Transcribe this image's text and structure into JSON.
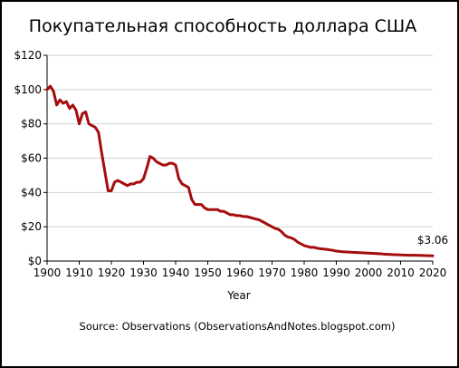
{
  "chart_data": {
    "type": "line",
    "title": "Покупательная способность доллара США",
    "xlabel": "Year",
    "ylabel": "",
    "source": "Source: Observations (ObservationsAndNotes.blogspot.com)",
    "annotation": "$3.06",
    "xlim": [
      1900,
      2020
    ],
    "ylim": [
      0,
      120
    ],
    "x_ticks": [
      1900,
      1910,
      1920,
      1930,
      1940,
      1950,
      1960,
      1970,
      1980,
      1990,
      2000,
      2010,
      2020
    ],
    "x_tick_labels": [
      "1900",
      "1910",
      "1920",
      "1930",
      "1940",
      "1950",
      "1960",
      "1970",
      "1980",
      "1990",
      "2000",
      "2010",
      "2020"
    ],
    "y_ticks": [
      0,
      20,
      40,
      60,
      80,
      100,
      120
    ],
    "y_tick_labels": [
      "$0",
      "$20",
      "$40",
      "$60",
      "$80",
      "$100",
      "$120"
    ],
    "grid": "horizontal",
    "line_color": "#a50d0d",
    "series": [
      {
        "x": [
          1900,
          1901,
          1902,
          1903,
          1904,
          1905,
          1906,
          1907,
          1908,
          1909,
          1910,
          1911,
          1912,
          1913,
          1914,
          1915,
          1916,
          1917,
          1918,
          1919,
          1920,
          1921,
          1922,
          1923,
          1924,
          1925,
          1926,
          1927,
          1928,
          1929,
          1930,
          1931,
          1932,
          1933,
          1934,
          1935,
          1936,
          1937,
          1938,
          1939,
          1940,
          1941,
          1942,
          1943,
          1944,
          1945,
          1946,
          1947,
          1948,
          1949,
          1950,
          1951,
          1952,
          1953,
          1954,
          1955,
          1956,
          1957,
          1958,
          1959,
          1960,
          1961,
          1962,
          1963,
          1964,
          1965,
          1966,
          1967,
          1968,
          1969,
          1970,
          1971,
          1972,
          1973,
          1974,
          1975,
          1976,
          1977,
          1978,
          1979,
          1980,
          1981,
          1982,
          1983,
          1984,
          1985,
          1986,
          1987,
          1988,
          1989,
          1990,
          1991,
          1992,
          1993,
          1994,
          1995,
          1996,
          1997,
          1998,
          1999,
          2000,
          2001,
          2002,
          2003,
          2004,
          2005,
          2006,
          2007,
          2008,
          2009,
          2010,
          2011,
          2012,
          2013,
          2014,
          2015,
          2016,
          2017,
          2018,
          2019,
          2020
        ],
        "values": [
          100,
          102,
          99,
          91,
          94,
          92,
          93,
          89,
          91,
          88,
          80,
          86,
          87,
          80,
          79,
          78,
          75,
          63,
          52,
          41,
          41,
          46,
          47,
          46,
          45,
          44,
          45,
          45,
          46,
          46,
          48,
          54,
          61,
          60,
          58,
          57,
          56,
          56,
          57,
          57,
          56,
          48,
          45,
          44,
          43,
          36,
          33,
          33,
          33,
          31,
          30,
          30,
          30,
          30,
          29,
          29,
          28,
          27,
          27,
          26.5,
          26.5,
          26,
          26,
          25.5,
          25,
          24.5,
          24,
          23,
          22,
          21,
          20,
          19,
          18.5,
          17,
          15,
          14,
          13.5,
          12.5,
          11,
          10,
          9,
          8.5,
          8,
          8,
          7.5,
          7.2,
          7,
          6.8,
          6.5,
          6.2,
          5.8,
          5.6,
          5.4,
          5.3,
          5.2,
          5.1,
          5.0,
          4.9,
          4.8,
          4.7,
          4.6,
          4.5,
          4.4,
          4.3,
          4.2,
          4.0,
          3.9,
          3.8,
          3.7,
          3.7,
          3.6,
          3.5,
          3.45,
          3.4,
          3.35,
          3.35,
          3.3,
          3.25,
          3.15,
          3.1,
          3.06
        ]
      }
    ]
  }
}
